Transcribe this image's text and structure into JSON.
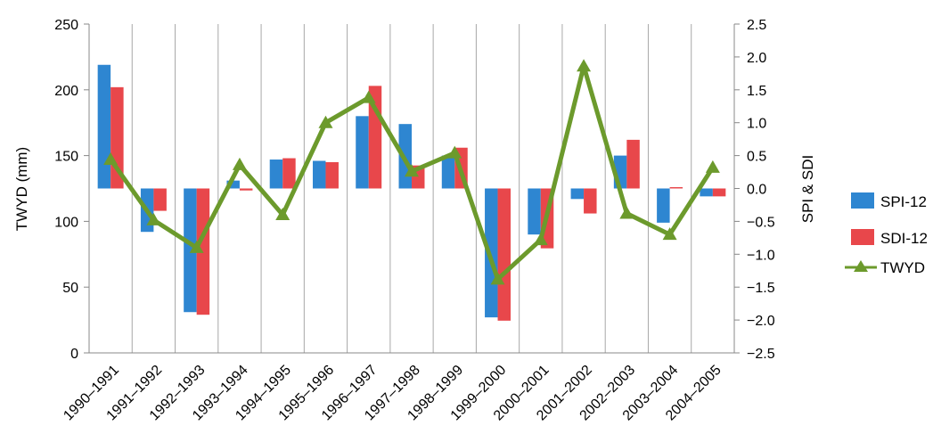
{
  "chart_data": {
    "type": "bar",
    "categories": [
      "1990–1991",
      "1991–1992",
      "1992–1993",
      "1993–1994",
      "1994–1995",
      "1995–1996",
      "1996–1997",
      "1997–1998",
      "1998–1999",
      "1999–2000",
      "2000–2001",
      "2001–2002",
      "2002–2003",
      "2003–2004",
      "2004–2005"
    ],
    "ylabel": "TWYD  (mm)",
    "y2label": "SPI  &  SDI",
    "ylim": [
      0,
      250
    ],
    "y2lim": [
      -2.5,
      2.5
    ],
    "yticks": [
      "0",
      "50",
      "100",
      "150",
      "200",
      "250"
    ],
    "y2ticks": [
      "−2.5",
      "−2.0",
      "−1.5",
      "−1.0",
      "−0.5",
      "0.0",
      "0.5",
      "1.0",
      "1.5",
      "2.0",
      "2.5"
    ],
    "grid": "vertical",
    "legend_position": "right",
    "series": [
      {
        "name": "SPI-12",
        "kind": "bar",
        "axis": "right",
        "color": "#2E86D1",
        "values": [
          1.88,
          -0.66,
          -1.88,
          0.12,
          0.44,
          0.42,
          1.1,
          0.98,
          0.5,
          -1.96,
          -0.7,
          -0.16,
          0.5,
          -0.52,
          -0.12
        ]
      },
      {
        "name": "SDI-12",
        "kind": "bar",
        "axis": "right",
        "color": "#E8474B",
        "values": [
          1.54,
          -0.34,
          -1.92,
          -0.03,
          0.46,
          0.4,
          1.56,
          0.35,
          0.62,
          -2.01,
          -0.91,
          -0.38,
          0.74,
          0.02,
          -0.12
        ]
      },
      {
        "name": "TWYD",
        "kind": "line",
        "axis": "left",
        "color": "#6C9A2C",
        "marker": "triangle",
        "values": [
          147,
          101,
          80,
          143,
          105,
          175,
          194,
          138,
          152,
          56,
          86,
          218,
          106,
          90,
          141
        ]
      }
    ]
  }
}
